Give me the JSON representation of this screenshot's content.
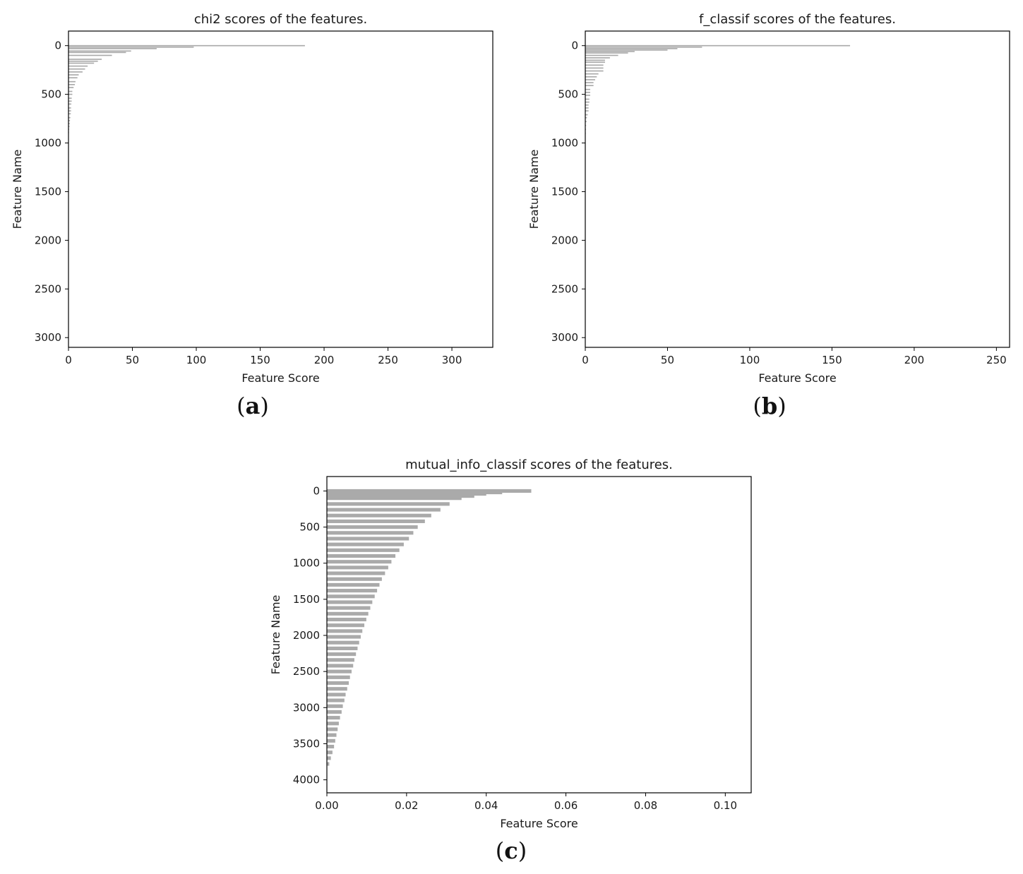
{
  "chart_data": [
    {
      "type": "bar",
      "orientation": "horizontal",
      "title": "chi2 scores of the features.",
      "xlabel": "Feature Score",
      "ylabel": "Feature Name",
      "xlim": [
        0,
        332
      ],
      "ylim": [
        3100,
        -150
      ],
      "xticks": [
        0,
        50,
        100,
        150,
        200,
        250,
        300
      ],
      "xtick_labels": [
        "0",
        "50",
        "100",
        "150",
        "200",
        "250",
        "300"
      ],
      "yticks": [
        0,
        500,
        1000,
        1500,
        2000,
        2500,
        3000
      ],
      "ytick_labels": [
        "0",
        "500",
        "1000",
        "1500",
        "2000",
        "2500",
        "3000"
      ],
      "bar_color": "#aaaaaa",
      "bar_thickness": 12,
      "bars": [
        {
          "y": 0,
          "value": 185
        },
        {
          "y": 15,
          "value": 98
        },
        {
          "y": 30,
          "value": 69
        },
        {
          "y": 55,
          "value": 49
        },
        {
          "y": 70,
          "value": 45
        },
        {
          "y": 100,
          "value": 34
        },
        {
          "y": 140,
          "value": 26
        },
        {
          "y": 160,
          "value": 23
        },
        {
          "y": 180,
          "value": 20
        },
        {
          "y": 210,
          "value": 15
        },
        {
          "y": 240,
          "value": 13
        },
        {
          "y": 270,
          "value": 11
        },
        {
          "y": 300,
          "value": 8
        },
        {
          "y": 330,
          "value": 7
        },
        {
          "y": 370,
          "value": 5.5
        },
        {
          "y": 400,
          "value": 5
        },
        {
          "y": 430,
          "value": 4
        },
        {
          "y": 470,
          "value": 3
        },
        {
          "y": 500,
          "value": 3
        },
        {
          "y": 540,
          "value": 2.5
        },
        {
          "y": 570,
          "value": 2.5
        },
        {
          "y": 600,
          "value": 2.2
        },
        {
          "y": 640,
          "value": 2
        },
        {
          "y": 670,
          "value": 2
        },
        {
          "y": 700,
          "value": 1.8
        },
        {
          "y": 740,
          "value": 1.5
        },
        {
          "y": 770,
          "value": 1.2
        },
        {
          "y": 800,
          "value": 1
        },
        {
          "y": 830,
          "value": 0.8
        },
        {
          "y": 860,
          "value": 0.5
        },
        {
          "y": 890,
          "value": 0.4
        }
      ],
      "caption": "a"
    },
    {
      "type": "bar",
      "orientation": "horizontal",
      "title": "f_classif scores of the features.",
      "xlabel": "Feature Score",
      "ylabel": "Feature Name",
      "xlim": [
        0,
        258
      ],
      "ylim": [
        3100,
        -150
      ],
      "xticks": [
        0,
        50,
        100,
        150,
        200,
        250
      ],
      "xtick_labels": [
        "0",
        "50",
        "100",
        "150",
        "200",
        "250"
      ],
      "yticks": [
        0,
        500,
        1000,
        1500,
        2000,
        2500,
        3000
      ],
      "ytick_labels": [
        "0",
        "500",
        "1000",
        "1500",
        "2000",
        "2500",
        "3000"
      ],
      "bar_color": "#aaaaaa",
      "bar_thickness": 12,
      "bars": [
        {
          "y": 0,
          "value": 161
        },
        {
          "y": 15,
          "value": 71
        },
        {
          "y": 30,
          "value": 56
        },
        {
          "y": 45,
          "value": 50
        },
        {
          "y": 60,
          "value": 30
        },
        {
          "y": 75,
          "value": 26
        },
        {
          "y": 100,
          "value": 20
        },
        {
          "y": 125,
          "value": 15
        },
        {
          "y": 150,
          "value": 12
        },
        {
          "y": 170,
          "value": 12
        },
        {
          "y": 200,
          "value": 11
        },
        {
          "y": 230,
          "value": 11
        },
        {
          "y": 260,
          "value": 11
        },
        {
          "y": 290,
          "value": 8
        },
        {
          "y": 320,
          "value": 7
        },
        {
          "y": 350,
          "value": 6
        },
        {
          "y": 380,
          "value": 5
        },
        {
          "y": 410,
          "value": 5
        },
        {
          "y": 450,
          "value": 3
        },
        {
          "y": 480,
          "value": 3
        },
        {
          "y": 510,
          "value": 3
        },
        {
          "y": 550,
          "value": 2.5
        },
        {
          "y": 580,
          "value": 2.5
        },
        {
          "y": 610,
          "value": 2
        },
        {
          "y": 640,
          "value": 2
        },
        {
          "y": 670,
          "value": 2
        },
        {
          "y": 710,
          "value": 1.5
        },
        {
          "y": 740,
          "value": 1
        },
        {
          "y": 780,
          "value": 0.8
        },
        {
          "y": 820,
          "value": 0.5
        },
        {
          "y": 860,
          "value": 0.4
        },
        {
          "y": 900,
          "value": 0.3
        }
      ],
      "caption": "b"
    },
    {
      "type": "bar",
      "orientation": "horizontal",
      "title": "mutual_info_classif scores of the features.",
      "xlabel": "Feature Score",
      "ylabel": "Feature Name",
      "xlim": [
        0,
        0.1065
      ],
      "ylim": [
        4180,
        -200
      ],
      "xticks": [
        0,
        0.02,
        0.04,
        0.06,
        0.08,
        0.1
      ],
      "xtick_labels": [
        "0.00",
        "0.02",
        "0.04",
        "0.06",
        "0.08",
        "0.10"
      ],
      "yticks": [
        0,
        500,
        1000,
        1500,
        2000,
        2500,
        3000,
        3500,
        4000
      ],
      "ytick_labels": [
        "0",
        "500",
        "1000",
        "1500",
        "2000",
        "2500",
        "3000",
        "3500",
        "4000"
      ],
      "bar_color": "#aaaaaa",
      "bar_thickness": 50,
      "bars": [
        {
          "y": 0,
          "value": 0.0513
        },
        {
          "y": 20,
          "value": 0.044
        },
        {
          "y": 40,
          "value": 0.04
        },
        {
          "y": 70,
          "value": 0.037
        },
        {
          "y": 100,
          "value": 0.0338
        },
        {
          "y": 180,
          "value": 0.0308
        },
        {
          "y": 260,
          "value": 0.0285
        },
        {
          "y": 340,
          "value": 0.0262
        },
        {
          "y": 420,
          "value": 0.0246
        },
        {
          "y": 500,
          "value": 0.0228
        },
        {
          "y": 580,
          "value": 0.0217
        },
        {
          "y": 660,
          "value": 0.0206
        },
        {
          "y": 740,
          "value": 0.0193
        },
        {
          "y": 820,
          "value": 0.0182
        },
        {
          "y": 900,
          "value": 0.0172
        },
        {
          "y": 980,
          "value": 0.0162
        },
        {
          "y": 1060,
          "value": 0.0154
        },
        {
          "y": 1140,
          "value": 0.0146
        },
        {
          "y": 1220,
          "value": 0.0138
        },
        {
          "y": 1300,
          "value": 0.0132
        },
        {
          "y": 1380,
          "value": 0.0126
        },
        {
          "y": 1460,
          "value": 0.012
        },
        {
          "y": 1540,
          "value": 0.0114
        },
        {
          "y": 1620,
          "value": 0.0109
        },
        {
          "y": 1700,
          "value": 0.0104
        },
        {
          "y": 1780,
          "value": 0.0099
        },
        {
          "y": 1860,
          "value": 0.0094
        },
        {
          "y": 1940,
          "value": 0.0089
        },
        {
          "y": 2020,
          "value": 0.0085
        },
        {
          "y": 2100,
          "value": 0.0081
        },
        {
          "y": 2180,
          "value": 0.0077
        },
        {
          "y": 2260,
          "value": 0.0073
        },
        {
          "y": 2340,
          "value": 0.0069
        },
        {
          "y": 2420,
          "value": 0.0066
        },
        {
          "y": 2500,
          "value": 0.0062
        },
        {
          "y": 2580,
          "value": 0.0058
        },
        {
          "y": 2660,
          "value": 0.0055
        },
        {
          "y": 2740,
          "value": 0.0051
        },
        {
          "y": 2820,
          "value": 0.0047
        },
        {
          "y": 2900,
          "value": 0.0044
        },
        {
          "y": 2980,
          "value": 0.004
        },
        {
          "y": 3060,
          "value": 0.0037
        },
        {
          "y": 3140,
          "value": 0.0033
        },
        {
          "y": 3220,
          "value": 0.003
        },
        {
          "y": 3300,
          "value": 0.0027
        },
        {
          "y": 3380,
          "value": 0.0024
        },
        {
          "y": 3460,
          "value": 0.0021
        },
        {
          "y": 3540,
          "value": 0.0018
        },
        {
          "y": 3620,
          "value": 0.0014
        },
        {
          "y": 3700,
          "value": 0.001
        },
        {
          "y": 3780,
          "value": 0.0006
        }
      ],
      "caption": "c"
    }
  ]
}
